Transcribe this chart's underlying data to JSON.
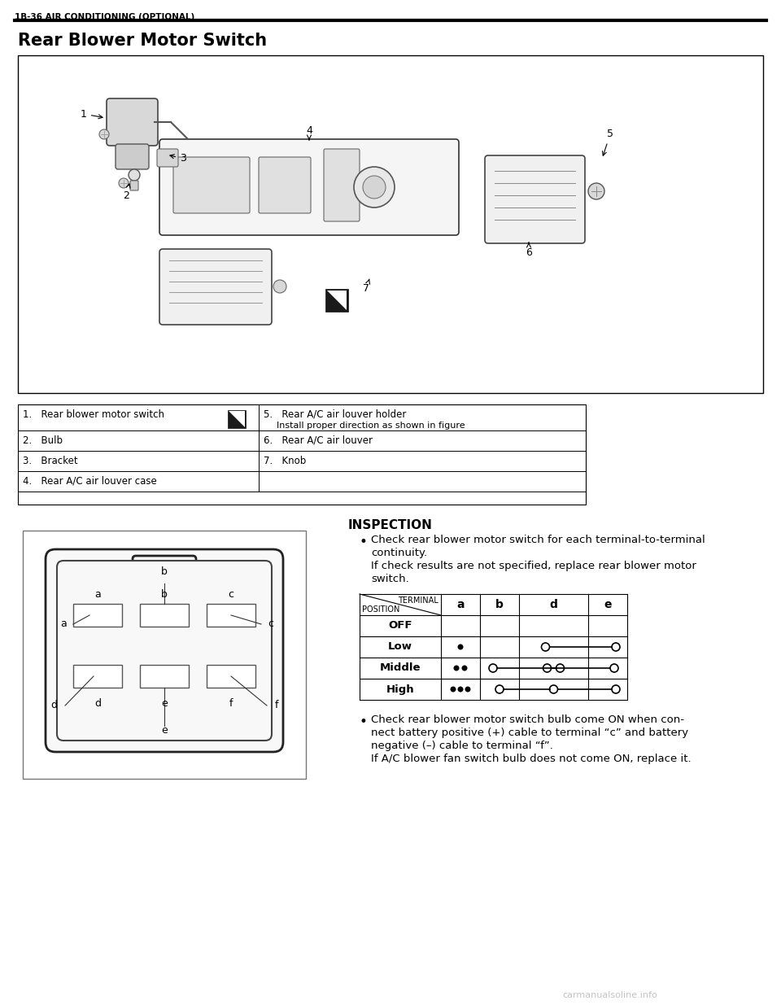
{
  "page_header": "1B-36 AIR CONDITIONING (OPTIONAL)",
  "section_title": "Rear Blower Motor Switch",
  "inspection_title": "INSPECTION",
  "bg_color": "#ffffff",
  "parts_table_rows": [
    [
      "1.  Rear blower motor switch",
      "5.  Rear A/C air louver holder"
    ],
    [
      "",
      "    Install proper direction as shown in figure"
    ],
    [
      "2.  Bulb",
      "6.  Rear A/C air louver"
    ],
    [
      "3.  Bracket",
      "7.  Knob"
    ],
    [
      "4.  Rear A/C air louver case",
      ""
    ]
  ],
  "bullet1_lines": [
    "Check rear blower motor switch for each terminal-to-terminal",
    "continuity.",
    "If check results are not specified, replace rear blower motor",
    "switch."
  ],
  "bullet2_lines": [
    "Check rear blower motor switch bulb come ON when con-",
    "nect battery positive (+) cable to terminal “c” and battery",
    "negative (–) cable to terminal “f”.",
    "If A/C blower fan switch bulb does not come ON, replace it."
  ],
  "col_labels": [
    "a",
    "b",
    "d",
    "e"
  ],
  "row_labels": [
    "OFF",
    "Low",
    "Middle",
    "High"
  ],
  "watermark": "carmanualsoline.info"
}
